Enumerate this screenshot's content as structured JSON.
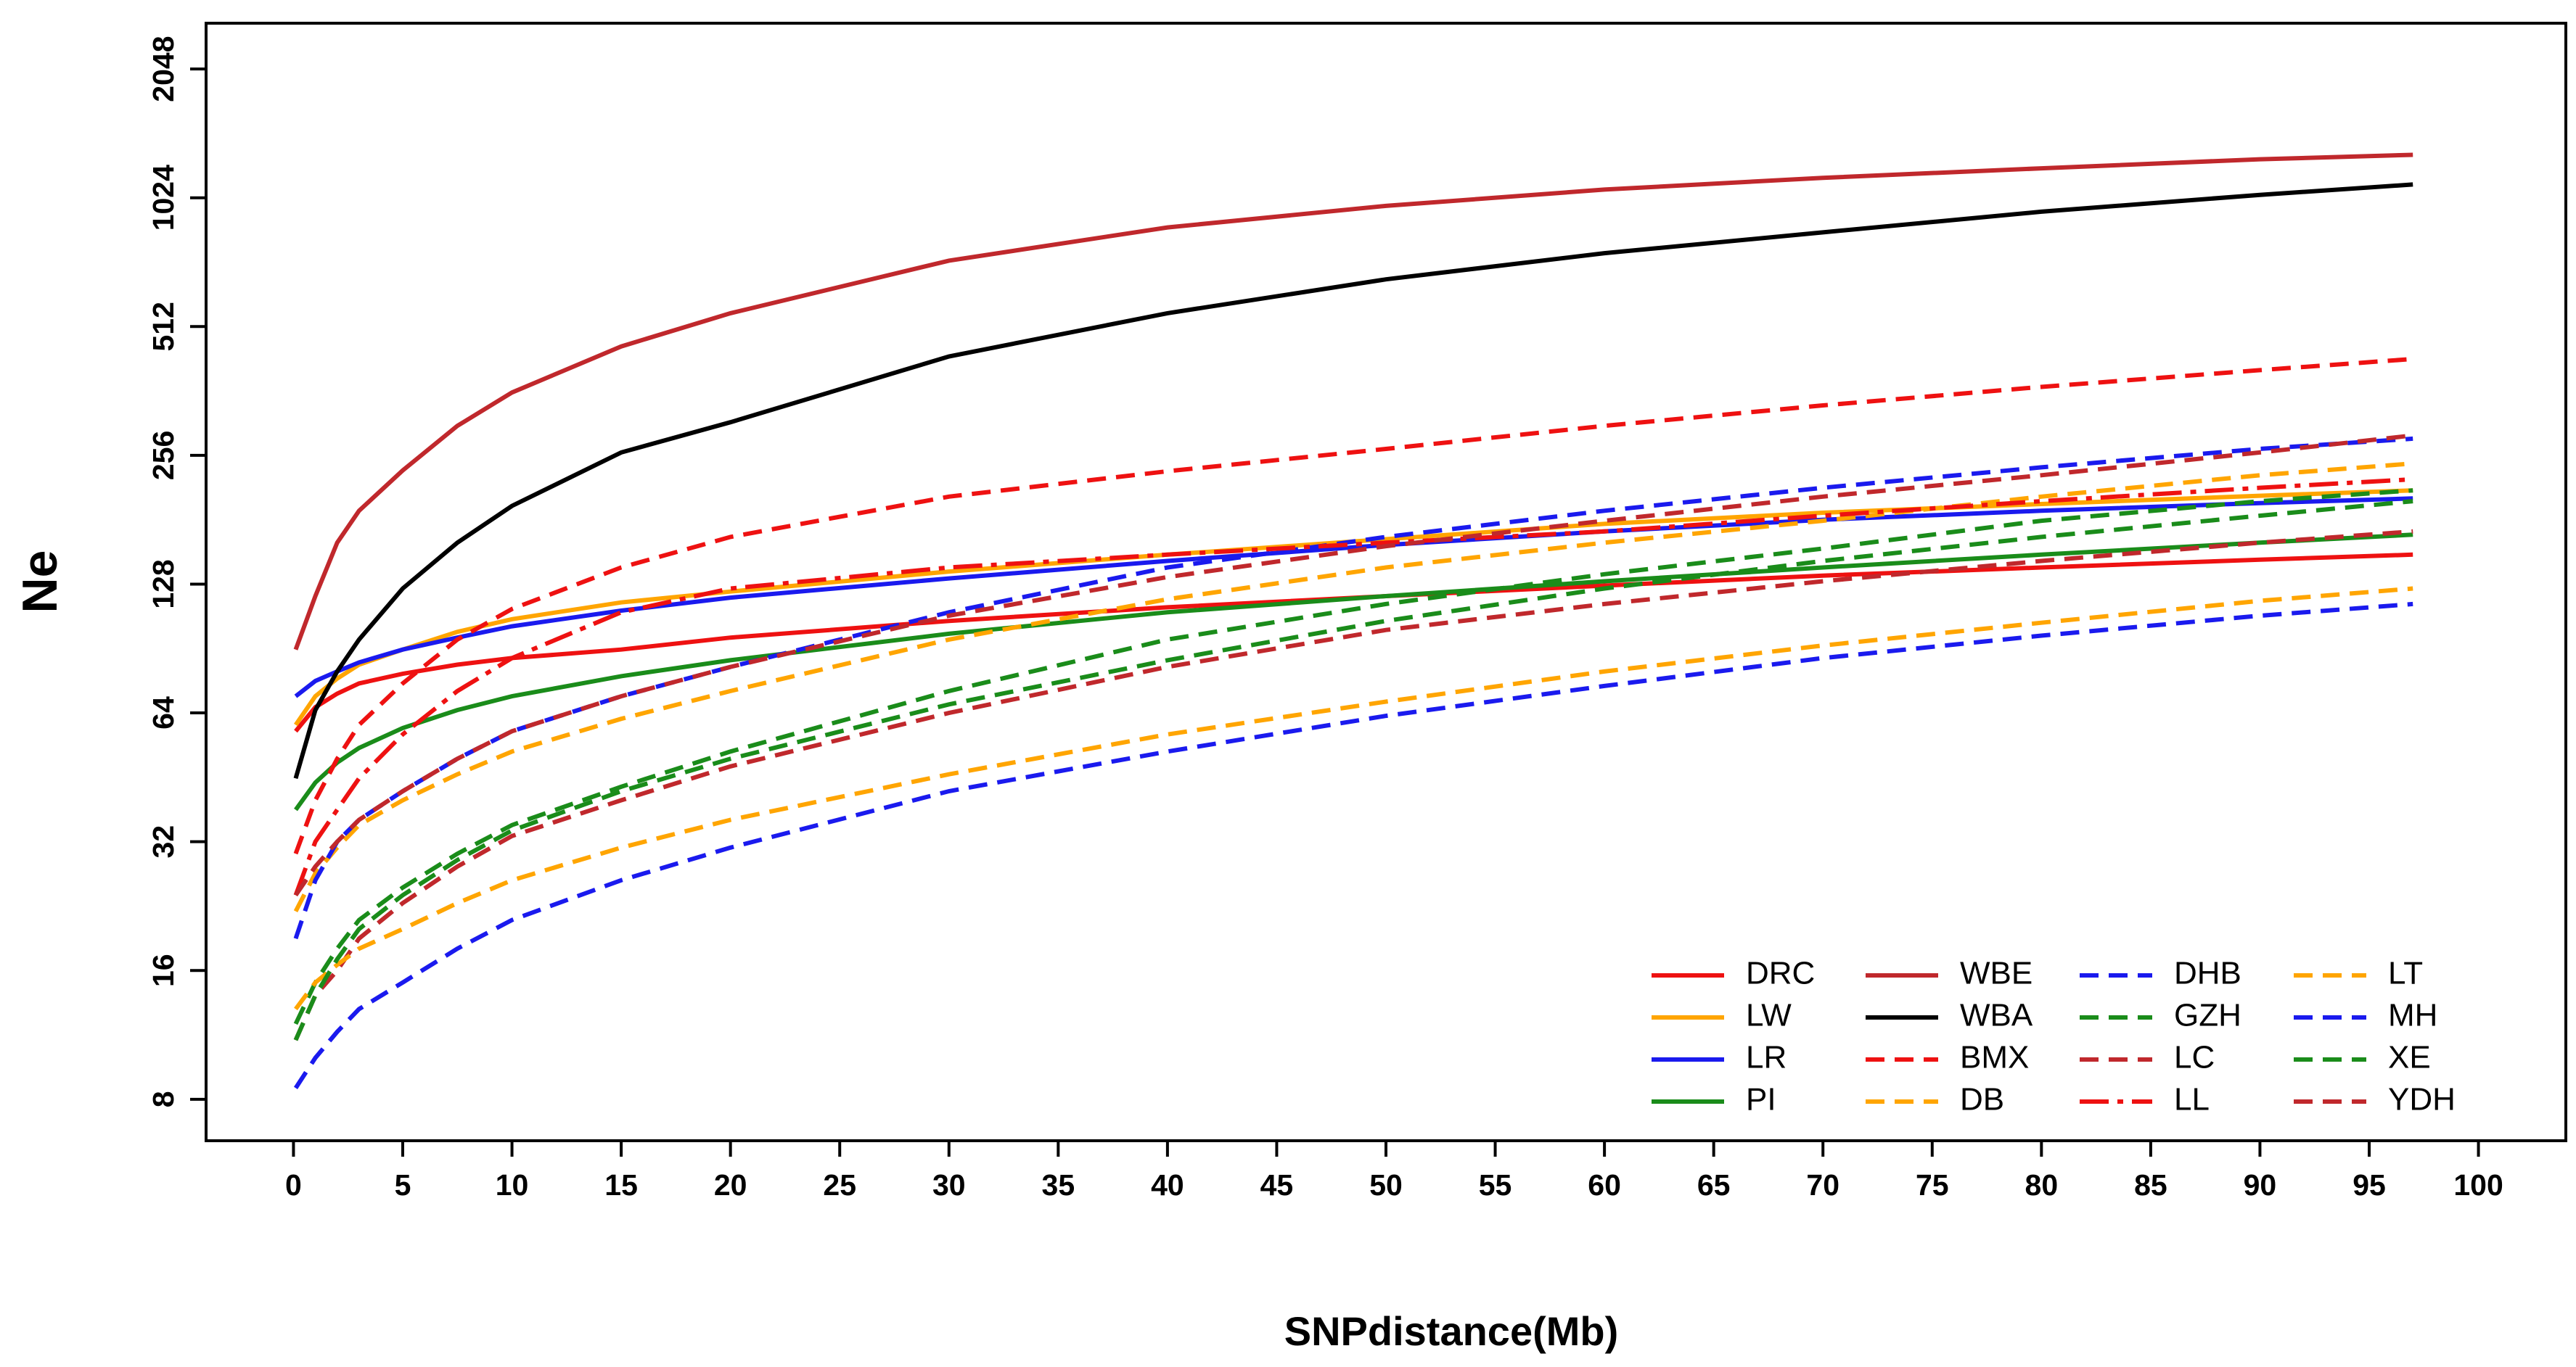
{
  "chart_data": {
    "type": "line",
    "xlabel": "SNPdistance(Mb)",
    "ylabel": "Ne",
    "log_base": 2,
    "xlim": [
      -4,
      104
    ],
    "ylim": [
      6.4,
      2620
    ],
    "xticks": [
      0,
      5,
      10,
      15,
      20,
      25,
      30,
      35,
      40,
      45,
      50,
      55,
      60,
      65,
      70,
      75,
      80,
      85,
      90,
      95,
      100
    ],
    "yticks": [
      8,
      16,
      32,
      64,
      128,
      256,
      512,
      1024,
      2048
    ],
    "legend": "bottom-right",
    "x": [
      0.1,
      1,
      2,
      3,
      5,
      7.5,
      10,
      15,
      20,
      30,
      40,
      50,
      60,
      70,
      80,
      90,
      97
    ],
    "series": [
      {
        "name": "DRC",
        "color": "#ee1111",
        "linestyle": "solid",
        "values": [
          58,
          66,
          71,
          75,
          79,
          83,
          86,
          90,
          96,
          105,
          113,
          120,
          127,
          134,
          140,
          146,
          150
        ]
      },
      {
        "name": "LW",
        "color": "#ffa500",
        "linestyle": "solid",
        "values": [
          60,
          70,
          77,
          83,
          90,
          99,
          106,
          116,
          123,
          137,
          150,
          163,
          177,
          188,
          197,
          206,
          212
        ]
      },
      {
        "name": "LR",
        "color": "#1a1aee",
        "linestyle": "solid",
        "values": [
          70,
          76,
          80,
          84,
          90,
          96,
          102,
          111,
          119,
          132,
          145,
          158,
          170,
          181,
          190,
          198,
          203
        ]
      },
      {
        "name": "PI",
        "color": "#1a8c1a",
        "linestyle": "solid",
        "values": [
          38,
          44,
          49,
          53,
          59,
          65,
          70,
          78,
          85,
          98,
          110,
          120,
          130,
          140,
          150,
          160,
          167
        ]
      },
      {
        "name": "WBE",
        "color": "#c0282c",
        "linestyle": "solid",
        "values": [
          90,
          120,
          160,
          190,
          236,
          300,
          359,
          460,
          550,
          730,
          873,
          980,
          1070,
          1140,
          1200,
          1260,
          1290
        ]
      },
      {
        "name": "WBA",
        "color": "#000000",
        "linestyle": "solid",
        "values": [
          45,
          65,
          80,
          95,
          125,
          160,
          195,
          260,
          306,
          436,
          550,
          660,
          760,
          850,
          950,
          1040,
          1100
        ]
      },
      {
        "name": "BMX",
        "color": "#ee1111",
        "linestyle": "dashed",
        "values": [
          30,
          40,
          50,
          60,
          75,
          95,
          112,
          140,
          165,
          205,
          235,
          265,
          300,
          335,
          370,
          405,
          430
        ]
      },
      {
        "name": "DB",
        "color": "#ffa500",
        "linestyle": "dashed",
        "values": [
          22,
          27,
          31,
          35,
          40,
          46,
          52,
          62,
          72,
          95,
          118,
          140,
          160,
          180,
          205,
          230,
          245
        ]
      },
      {
        "name": "DHB",
        "color": "#1a1aee",
        "linestyle": "dashed",
        "values": [
          19,
          26,
          32,
          36,
          42,
          50,
          58,
          70,
          82,
          110,
          140,
          165,
          190,
          215,
          240,
          265,
          280
        ]
      },
      {
        "name": "GZH",
        "color": "#1a8c1a",
        "linestyle": "dashed",
        "values": [
          12,
          15,
          18,
          21,
          25,
          30,
          35,
          43,
          52,
          72,
          95,
          115,
          135,
          155,
          180,
          200,
          212
        ]
      },
      {
        "name": "LC",
        "color": "#c0282c",
        "linestyle": "dashed",
        "values": [
          11,
          14,
          16,
          19,
          23,
          28,
          33,
          40,
          48,
          64,
          82,
          100,
          115,
          130,
          145,
          160,
          170
        ]
      },
      {
        "name": "LL",
        "color": "#ee1111",
        "linestyle": "dashdot",
        "values": [
          24,
          32,
          38,
          45,
          57,
          72,
          86,
          110,
          125,
          140,
          150,
          160,
          170,
          185,
          200,
          215,
          225
        ]
      },
      {
        "name": "LT",
        "color": "#ffa500",
        "linestyle": "dashed",
        "values": [
          13,
          15,
          16.5,
          18,
          20,
          23,
          26,
          31,
          36,
          46,
          57,
          68,
          80,
          92,
          104,
          117,
          125
        ]
      },
      {
        "name": "MH",
        "color": "#1a1aee",
        "linestyle": "dashed",
        "values": [
          8.5,
          10,
          11.5,
          13,
          15,
          18,
          21,
          26,
          31,
          42,
          52,
          63,
          74,
          86,
          97,
          108,
          115
        ]
      },
      {
        "name": "XE",
        "color": "#1a8c1a",
        "linestyle": "dashed",
        "values": [
          11,
          14,
          17,
          20,
          24,
          29,
          34,
          42,
          50,
          67,
          85,
          105,
          125,
          145,
          165,
          185,
          200
        ]
      },
      {
        "name": "YDH",
        "color": "#c0282c",
        "linestyle": "dashed",
        "values": [
          24,
          28,
          32,
          36,
          42,
          50,
          58,
          70,
          82,
          108,
          133,
          157,
          180,
          205,
          230,
          260,
          285
        ]
      }
    ]
  }
}
